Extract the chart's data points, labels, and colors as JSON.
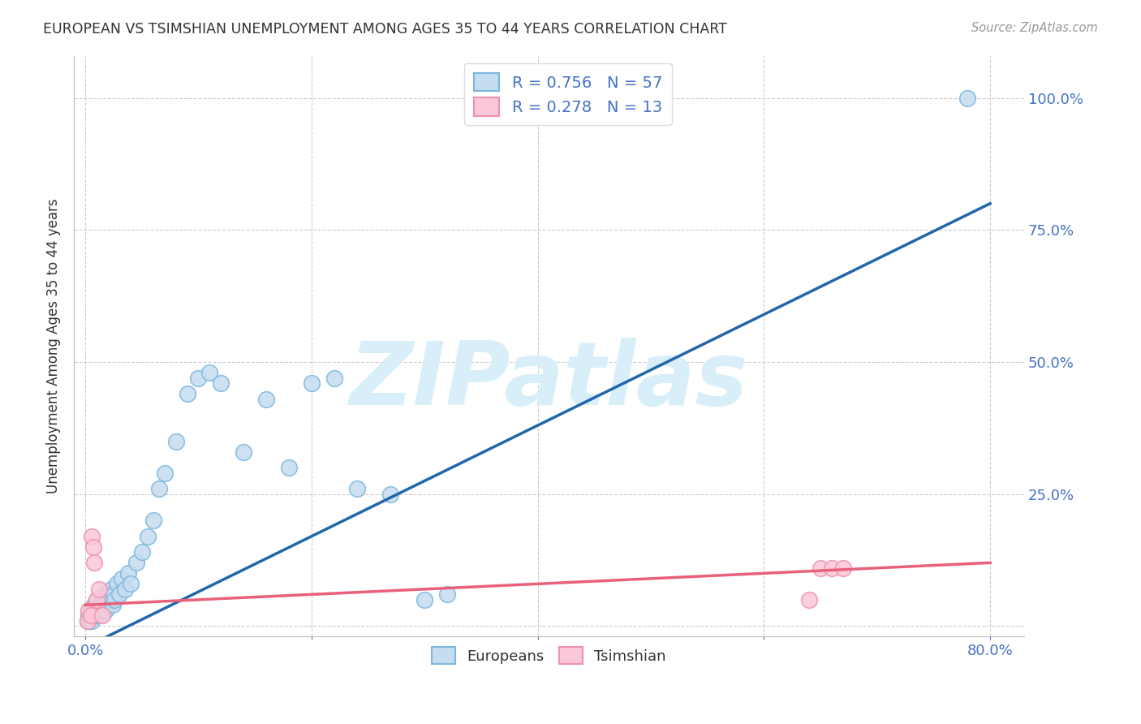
{
  "title": "EUROPEAN VS TSIMSHIAN UNEMPLOYMENT AMONG AGES 35 TO 44 YEARS CORRELATION CHART",
  "source": "Source: ZipAtlas.com",
  "ylabel": "Unemployment Among Ages 35 to 44 years",
  "xlim": [
    -0.01,
    0.83
  ],
  "ylim": [
    -0.02,
    1.08
  ],
  "x_ticks": [
    0.0,
    0.2,
    0.4,
    0.6,
    0.8
  ],
  "x_tick_labels": [
    "0.0%",
    "",
    "",
    "",
    "80.0%"
  ],
  "y_ticks": [
    0.0,
    0.25,
    0.5,
    0.75,
    1.0
  ],
  "y_tick_labels_right": [
    "",
    "25.0%",
    "50.0%",
    "75.0%",
    "100.0%"
  ],
  "european_face_color": "#c6dcf0",
  "european_edge_color": "#7ab8dc",
  "tsimshian_face_color": "#fbc8d8",
  "tsimshian_edge_color": "#f090b0",
  "european_line_color": "#2166ac",
  "tsimshian_line_color": "#e8607a",
  "legend_line1": "R = 0.756   N = 57",
  "legend_line2": "R = 0.278   N = 13",
  "blue_text_color": "#4472c4",
  "dark_text_color": "#333333",
  "source_color": "#999999",
  "grid_color": "#cccccc",
  "watermark_text": "ZIPatlas",
  "watermark_color": "#d8eef8",
  "background_color": "#ffffff",
  "european_scatter_x": [
    0.002,
    0.003,
    0.004,
    0.005,
    0.005,
    0.006,
    0.007,
    0.007,
    0.008,
    0.008,
    0.009,
    0.01,
    0.01,
    0.011,
    0.012,
    0.013,
    0.014,
    0.015,
    0.015,
    0.016,
    0.017,
    0.018,
    0.019,
    0.02,
    0.021,
    0.022,
    0.023,
    0.024,
    0.025,
    0.026,
    0.028,
    0.03,
    0.032,
    0.035,
    0.038,
    0.04,
    0.045,
    0.05,
    0.055,
    0.06,
    0.065,
    0.07,
    0.08,
    0.09,
    0.1,
    0.11,
    0.12,
    0.14,
    0.16,
    0.18,
    0.2,
    0.22,
    0.24,
    0.27,
    0.3,
    0.32,
    0.78
  ],
  "european_scatter_y": [
    0.01,
    0.02,
    0.01,
    0.03,
    0.02,
    0.01,
    0.03,
    0.02,
    0.04,
    0.02,
    0.03,
    0.02,
    0.05,
    0.03,
    0.04,
    0.02,
    0.03,
    0.05,
    0.03,
    0.04,
    0.06,
    0.03,
    0.05,
    0.04,
    0.06,
    0.05,
    0.07,
    0.04,
    0.06,
    0.05,
    0.08,
    0.06,
    0.09,
    0.07,
    0.1,
    0.08,
    0.12,
    0.14,
    0.17,
    0.2,
    0.26,
    0.29,
    0.35,
    0.44,
    0.47,
    0.48,
    0.46,
    0.33,
    0.43,
    0.3,
    0.46,
    0.47,
    0.26,
    0.25,
    0.05,
    0.06,
    1.0
  ],
  "tsimshian_scatter_x": [
    0.002,
    0.003,
    0.005,
    0.006,
    0.007,
    0.008,
    0.01,
    0.012,
    0.015,
    0.64,
    0.65,
    0.66,
    0.67
  ],
  "tsimshian_scatter_y": [
    0.01,
    0.03,
    0.02,
    0.17,
    0.15,
    0.12,
    0.05,
    0.07,
    0.02,
    0.05,
    0.11,
    0.11,
    0.11
  ],
  "eu_line_x0": 0.0,
  "eu_line_y0": -0.04,
  "eu_line_x1": 0.8,
  "eu_line_y1": 0.8,
  "ts_line_x0": 0.0,
  "ts_line_y0": 0.04,
  "ts_line_x1": 0.8,
  "ts_line_y1": 0.12
}
